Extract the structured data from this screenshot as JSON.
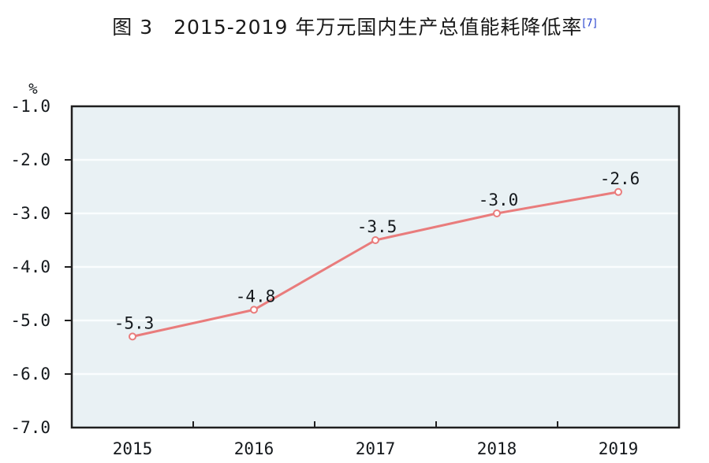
{
  "figure": {
    "title": {
      "text": "图 3　2015-2019 年万元国内生产总值能耗降低率",
      "superscript": "[7]"
    }
  },
  "chart_data": {
    "type": "line",
    "title": "图 3 2015-2019 年万元国内生产总值能耗降低率[7]",
    "unit_label": "%",
    "categories": [
      "2015",
      "2016",
      "2017",
      "2018",
      "2019"
    ],
    "series": [
      {
        "name": "万元国内生产总值能耗降低率",
        "values": [
          -5.3,
          -4.8,
          -3.5,
          -3.0,
          -2.6
        ],
        "labels": [
          "-5.3",
          "-4.8",
          "-3.5",
          "-3.0",
          "-2.6"
        ]
      }
    ],
    "ylim": [
      -7.0,
      -1.0
    ],
    "yticks": [
      -1.0,
      -2.0,
      -3.0,
      -4.0,
      -5.0,
      -6.0,
      -7.0
    ],
    "ytick_labels": [
      "-1.0",
      "-2.0",
      "-3.0",
      "-4.0",
      "-5.0",
      "-6.0",
      "-7.0"
    ],
    "grid": "horizontal-only",
    "legend_position": "none",
    "marker_style": "open-circle",
    "colors": {
      "line": "#e97c7c",
      "marker_fill": "#ffffff",
      "marker_stroke": "#e97c7c",
      "plot_background": "#e9f1f4",
      "gridline": "#fafdfe",
      "axis_frame": "#1f1f1f",
      "label_text": "#14181c",
      "title_text": "#1a1a1a",
      "superscript": "#2b46cf",
      "page_background": "#ffffff"
    }
  }
}
